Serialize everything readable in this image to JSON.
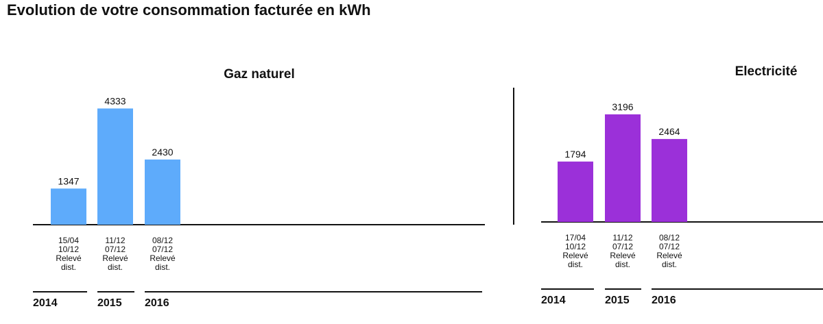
{
  "page": {
    "title": "Evolution de votre consommation facturée en kWh"
  },
  "chart_data": [
    {
      "type": "bar",
      "title": "Gaz naturel",
      "color": "#5eabfb",
      "categories": [
        [
          "15/04",
          "10/12",
          "Relevé",
          "dist."
        ],
        [
          "11/12",
          "07/12",
          "Relevé",
          "dist."
        ],
        [
          "08/12",
          "07/12",
          "Relevé",
          "dist."
        ]
      ],
      "values": [
        1347,
        4333,
        2430
      ],
      "year_groups": [
        "2014",
        "2015",
        "2016"
      ],
      "ylim": [
        0,
        4700
      ]
    },
    {
      "type": "bar",
      "title": "Electricité",
      "color": "#9b30d9",
      "categories": [
        [
          "17/04",
          "10/12",
          "Relevé",
          "dist."
        ],
        [
          "11/12",
          "07/12",
          "Relevé",
          "dist."
        ],
        [
          "08/12",
          "07/12",
          "Relevé",
          "dist."
        ]
      ],
      "values": [
        1794,
        3196,
        2464
      ],
      "year_groups": [
        "2014",
        "2015",
        "2016"
      ],
      "ylim": [
        0,
        3500
      ]
    }
  ]
}
